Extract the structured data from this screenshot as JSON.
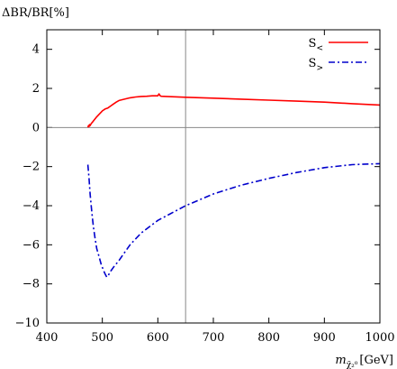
{
  "chart_data": {
    "type": "line",
    "ylabel": "ΔBR/BR[%]",
    "xlabel": {
      "main": "m",
      "subscript": "χ̃₂⁰",
      "unit": "[GeV]"
    },
    "xlim": [
      400,
      1000
    ],
    "ylim": [
      -10,
      5
    ],
    "xticks": [
      400,
      500,
      600,
      700,
      800,
      900,
      1000
    ],
    "yticks": [
      -10,
      -8,
      -6,
      -4,
      -2,
      0,
      2,
      4
    ],
    "grid": false,
    "reference_lines": {
      "y": 0,
      "x": 650
    },
    "legend_position": "top-right",
    "series": [
      {
        "name": "S<",
        "name_main": "S",
        "name_sub": "<",
        "color": "#ff0000",
        "style": "solid",
        "x": [
          474,
          475,
          476,
          477,
          478,
          480,
          483,
          487,
          490,
          495,
          500,
          505,
          510,
          515,
          520,
          525,
          530,
          540,
          550,
          560,
          570,
          580,
          590,
          600,
          602,
          604,
          606,
          620,
          650,
          700,
          750,
          800,
          850,
          900,
          950,
          1000
        ],
        "y": [
          0.0,
          0.1,
          0.05,
          0.15,
          0.1,
          0.2,
          0.3,
          0.45,
          0.55,
          0.7,
          0.85,
          0.95,
          1.0,
          1.1,
          1.2,
          1.3,
          1.38,
          1.45,
          1.52,
          1.56,
          1.59,
          1.6,
          1.62,
          1.62,
          1.72,
          1.63,
          1.6,
          1.58,
          1.55,
          1.5,
          1.45,
          1.4,
          1.35,
          1.3,
          1.22,
          1.15
        ]
      },
      {
        "name": "S>",
        "name_main": "S",
        "name_sub": ">",
        "color": "#0000cc",
        "style": "dashdot",
        "x": [
          474,
          476,
          478,
          480,
          482,
          484,
          487,
          490,
          494,
          498,
          502,
          505,
          508,
          510,
          512,
          515,
          520,
          530,
          540,
          550,
          570,
          600,
          650,
          700,
          750,
          800,
          850,
          900,
          950,
          1000
        ],
        "y": [
          -1.9,
          -2.6,
          -3.4,
          -4.0,
          -4.6,
          -5.1,
          -5.7,
          -6.2,
          -6.6,
          -7.0,
          -7.3,
          -7.5,
          -7.65,
          -7.6,
          -7.5,
          -7.35,
          -7.15,
          -6.8,
          -6.4,
          -6.0,
          -5.4,
          -4.75,
          -4.0,
          -3.4,
          -2.95,
          -2.6,
          -2.3,
          -2.05,
          -1.9,
          -1.85
        ]
      }
    ]
  }
}
